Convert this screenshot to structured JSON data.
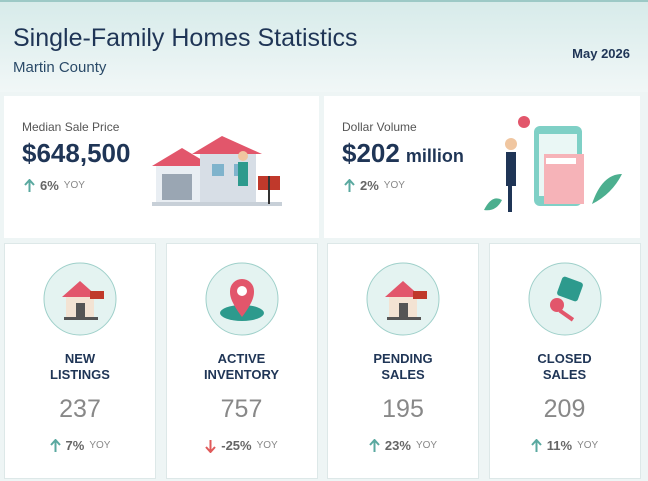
{
  "header": {
    "title": "Single-Family Homes Statistics",
    "subtitle": "Martin County",
    "date": "May 2026"
  },
  "highlights": [
    {
      "label": "Median Sale Price",
      "value": "$648,500",
      "change": "6%",
      "change_label": "YOY",
      "direction": "up"
    },
    {
      "label": "Dollar Volume",
      "value": "$202",
      "unit": "million",
      "change": "2%",
      "change_label": "YOY",
      "direction": "up"
    }
  ],
  "cards": [
    {
      "title": "NEW LISTINGS",
      "value": "237",
      "change": "7%",
      "change_label": "YOY",
      "direction": "up",
      "icon": "house"
    },
    {
      "title": "ACTIVE INVENTORY",
      "value": "757",
      "change": "-25%",
      "change_label": "YOY",
      "direction": "down",
      "icon": "pin"
    },
    {
      "title": "PENDING SALES",
      "value": "195",
      "change": "23%",
      "change_label": "YOY",
      "direction": "up",
      "icon": "house"
    },
    {
      "title": "CLOSED SALES",
      "value": "209",
      "change": "11%",
      "change_label": "YOY",
      "direction": "up",
      "icon": "key"
    }
  ]
}
